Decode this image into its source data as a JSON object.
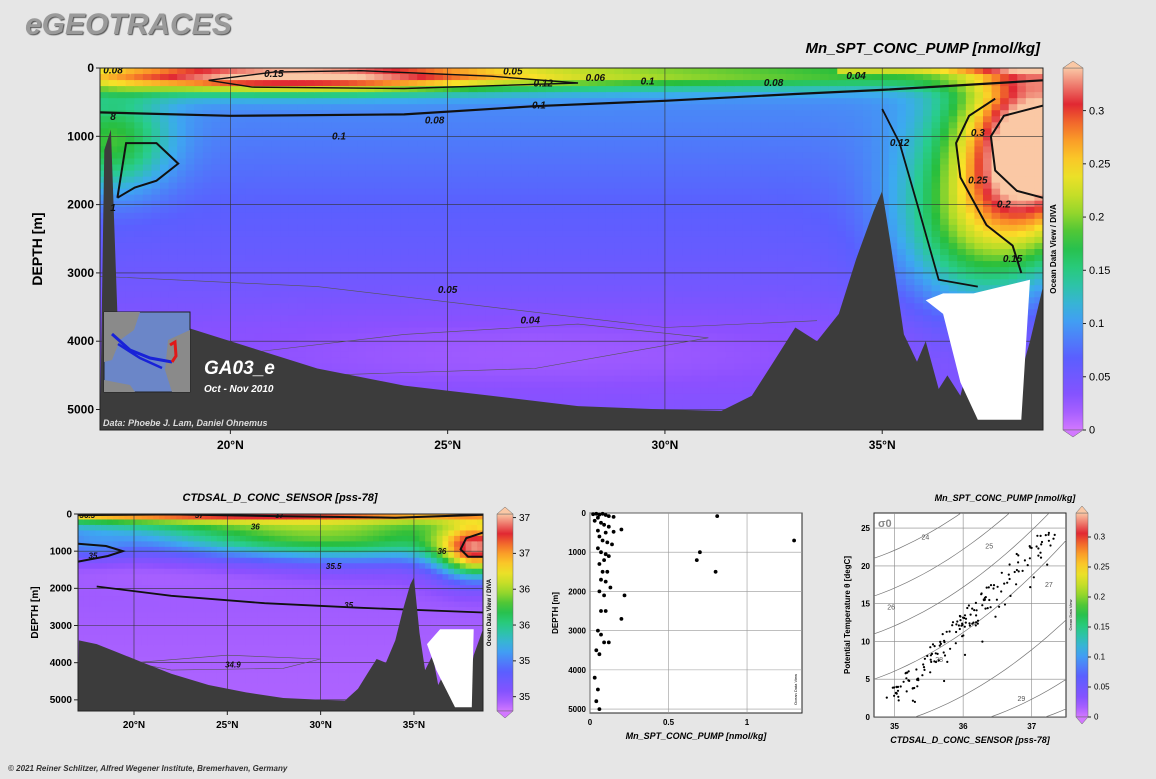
{
  "brand": "eGEOTRACES",
  "footer": "© 2021 Reiner Schlitzer, Alfred Wegener Institute, Bremerhaven, Germany",
  "chart_data": [
    {
      "type": "heatmap",
      "title": "Mn_SPT_CONC_PUMP [nmol/kg]",
      "ylabel": "DEPTH [m]",
      "xlim": [
        17,
        38.7
      ],
      "ylim": [
        0,
        5300
      ],
      "x_ticks": [
        "20°N",
        "25°N",
        "30°N",
        "35°N"
      ],
      "x_tick_values": [
        20,
        25,
        30,
        35
      ],
      "y_ticks": [
        "0",
        "1000",
        "2000",
        "3000",
        "4000",
        "5000"
      ],
      "y_tick_values": [
        0,
        1000,
        2000,
        3000,
        4000,
        5000
      ],
      "colorbar": {
        "ticks": [
          "0",
          "0.05",
          "0.1",
          "0.15",
          "0.2",
          "0.25",
          "0.3"
        ],
        "tick_values": [
          0,
          0.05,
          0.1,
          0.15,
          0.2,
          0.25,
          0.3
        ],
        "range": [
          0,
          0.34
        ]
      },
      "contour_labels": [
        {
          "text": "0.15",
          "x": 21,
          "y": 90
        },
        {
          "text": "0.1",
          "x": 22.5,
          "y": 1000
        },
        {
          "text": "0.12",
          "x": 27.2,
          "y": 230
        },
        {
          "text": "0.1",
          "x": 29.6,
          "y": 200
        },
        {
          "text": "0.08",
          "x": 32.5,
          "y": 220
        },
        {
          "text": "0.06",
          "x": 28.4,
          "y": 150
        },
        {
          "text": "0.05",
          "x": 26.5,
          "y": 50
        },
        {
          "text": "0.04",
          "x": 34.4,
          "y": 120
        },
        {
          "text": "0.1",
          "x": 27.1,
          "y": 550
        },
        {
          "text": "0.08",
          "x": 24.7,
          "y": 770
        },
        {
          "text": "0.05",
          "x": 25,
          "y": 3250
        },
        {
          "text": "0.04",
          "x": 26.9,
          "y": 3700
        },
        {
          "text": "0.12",
          "x": 35.4,
          "y": 1100
        },
        {
          "text": "0.3",
          "x": 37.2,
          "y": 950
        },
        {
          "text": "0.25",
          "x": 37.2,
          "y": 1650
        },
        {
          "text": "0.2",
          "x": 37.8,
          "y": 2000
        },
        {
          "text": "0.15",
          "x": 38,
          "y": 2800
        },
        {
          "text": "0.08",
          "x": 17.3,
          "y": 40
        },
        {
          "text": "8",
          "x": 17.3,
          "y": 720
        },
        {
          "text": "1",
          "x": 17.3,
          "y": 2050
        }
      ],
      "section_label": "GA03_e",
      "section_dates": "Oct - Nov 2010",
      "credit": "Data: Phoebe J. Lam, Daniel Ohnemus",
      "side_label": "Ocean Data View / DIVA"
    },
    {
      "type": "heatmap",
      "title": "CTDSAL_D_CONC_SENSOR [pss-78]",
      "ylabel": "DEPTH [m]",
      "xlim": [
        17,
        38.7
      ],
      "ylim": [
        0,
        5300
      ],
      "x_ticks": [
        "20°N",
        "25°N",
        "30°N",
        "35°N"
      ],
      "x_tick_values": [
        20,
        25,
        30,
        35
      ],
      "y_ticks": [
        "0",
        "1000",
        "2000",
        "3000",
        "4000",
        "5000"
      ],
      "y_tick_values": [
        0,
        1000,
        2000,
        3000,
        4000,
        5000
      ],
      "colorbar": {
        "ticks": [
          "35",
          "35.5",
          "36",
          "36.5",
          "37",
          "37.5"
        ],
        "tick_values": [
          35,
          35.5,
          36,
          36.5,
          37,
          37.5
        ],
        "range": [
          34.8,
          37.55
        ]
      },
      "contour_labels": [
        {
          "text": "36.5",
          "x": 17.5,
          "y": 30
        },
        {
          "text": "37",
          "x": 23.5,
          "y": 30
        },
        {
          "text": "37",
          "x": 27.8,
          "y": 30
        },
        {
          "text": "36",
          "x": 26.5,
          "y": 340
        },
        {
          "text": "36",
          "x": 36.5,
          "y": 1000
        },
        {
          "text": "35",
          "x": 17.8,
          "y": 1120
        },
        {
          "text": "35.5",
          "x": 30.7,
          "y": 1400
        },
        {
          "text": "35",
          "x": 31.5,
          "y": 2450
        },
        {
          "text": "34.9",
          "x": 25.3,
          "y": 4050
        }
      ],
      "side_label": "Ocean Data View / DIVA"
    },
    {
      "type": "scatter",
      "xlabel": "Mn_SPT_CONC_PUMP [nmol/kg]",
      "ylabel": "DEPTH [m]",
      "xlim": [
        0,
        1.35
      ],
      "ylim": [
        0,
        5100
      ],
      "x_ticks": [
        "0",
        "0.5",
        "1"
      ],
      "x_tick_values": [
        0,
        0.5,
        1
      ],
      "y_ticks": [
        "0",
        "1000",
        "2000",
        "3000",
        "4000",
        "5000"
      ],
      "y_tick_values": [
        0,
        1000,
        2000,
        3000,
        4000,
        5000
      ],
      "points": [
        [
          0.02,
          30
        ],
        [
          0.04,
          20
        ],
        [
          0.06,
          40
        ],
        [
          0.08,
          20
        ],
        [
          0.1,
          50
        ],
        [
          0.12,
          80
        ],
        [
          0.15,
          100
        ],
        [
          0.05,
          120
        ],
        [
          0.03,
          200
        ],
        [
          0.07,
          250
        ],
        [
          0.09,
          300
        ],
        [
          0.12,
          350
        ],
        [
          0.05,
          450
        ],
        [
          0.15,
          480
        ],
        [
          0.1,
          500
        ],
        [
          0.2,
          420
        ],
        [
          0.06,
          600
        ],
        [
          0.08,
          700
        ],
        [
          0.11,
          750
        ],
        [
          0.14,
          800
        ],
        [
          0.05,
          900
        ],
        [
          0.07,
          1000
        ],
        [
          0.1,
          1050
        ],
        [
          0.12,
          1100
        ],
        [
          0.09,
          1200
        ],
        [
          0.06,
          1300
        ],
        [
          0.08,
          1500
        ],
        [
          0.11,
          1500
        ],
        [
          0.07,
          1700
        ],
        [
          0.1,
          1750
        ],
        [
          0.13,
          1900
        ],
        [
          0.06,
          2000
        ],
        [
          0.09,
          2100
        ],
        [
          0.22,
          2100
        ],
        [
          0.07,
          2500
        ],
        [
          0.1,
          2500
        ],
        [
          0.2,
          2700
        ],
        [
          0.05,
          3000
        ],
        [
          0.07,
          3100
        ],
        [
          0.12,
          3300
        ],
        [
          0.04,
          3500
        ],
        [
          0.06,
          3600
        ],
        [
          0.09,
          3300
        ],
        [
          0.03,
          4200
        ],
        [
          0.05,
          4500
        ],
        [
          0.04,
          4800
        ],
        [
          0.06,
          5000
        ],
        [
          0.81,
          80
        ],
        [
          1.3,
          700
        ],
        [
          0.7,
          1000
        ],
        [
          0.68,
          1200
        ],
        [
          0.8,
          1500
        ]
      ],
      "side_label": "Ocean Data View"
    },
    {
      "type": "scatter",
      "title": "Mn_SPT_CONC_PUMP [nmol/kg]",
      "xlabel": "CTDSAL_D_CONC_SENSOR [pss-78]",
      "ylabel": "Potential Temperature θ [degC]",
      "xlim": [
        34.7,
        37.5
      ],
      "ylim": [
        0,
        27
      ],
      "x_ticks": [
        "35",
        "36",
        "37"
      ],
      "x_tick_values": [
        35,
        36,
        37
      ],
      "y_ticks": [
        "0",
        "5",
        "10",
        "15",
        "20",
        "25"
      ],
      "y_tick_values": [
        0,
        5,
        10,
        15,
        20,
        25
      ],
      "isopycnal_symbol": "σ0",
      "isopycnal_labels": [
        {
          "text": "24",
          "x": 35.45,
          "y": 23.5
        },
        {
          "text": "25",
          "x": 36.38,
          "y": 22.3
        },
        {
          "text": "26",
          "x": 34.95,
          "y": 14.2
        },
        {
          "text": "27",
          "x": 37.25,
          "y": 17.2
        },
        {
          "text": "28",
          "x": 35.65,
          "y": 7.3
        },
        {
          "text": "29",
          "x": 36.85,
          "y": 2.1
        }
      ],
      "colorbar": {
        "ticks": [
          "0",
          "0.05",
          "0.1",
          "0.15",
          "0.2",
          "0.25",
          "0.3"
        ],
        "tick_values": [
          0,
          0.05,
          0.1,
          0.15,
          0.2,
          0.25,
          0.3
        ],
        "range": [
          0,
          0.34
        ]
      },
      "side_label": "Ocean Data View"
    }
  ]
}
